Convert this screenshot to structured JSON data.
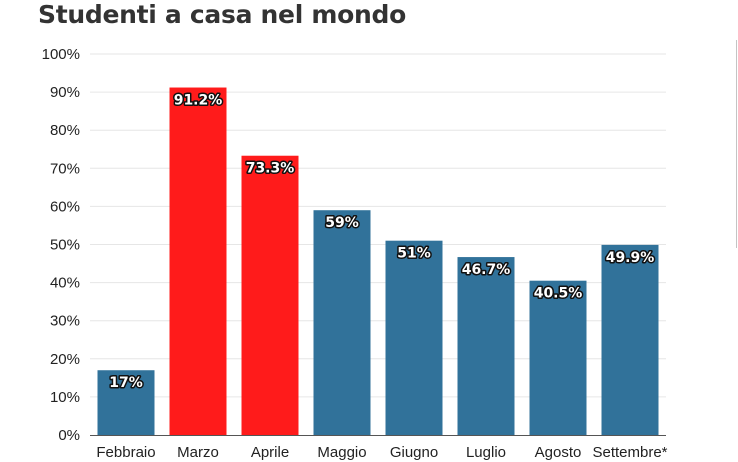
{
  "chart_data": {
    "type": "bar",
    "title": "Studenti a casa nel mondo",
    "xlabel": "",
    "ylabel": "",
    "categories": [
      "Febbraio",
      "Marzo",
      "Aprile",
      "Maggio",
      "Giugno",
      "Luglio",
      "Agosto",
      "Settembre*"
    ],
    "values": [
      17,
      91.2,
      73.3,
      59,
      51,
      46.7,
      40.5,
      49.9
    ],
    "value_labels": [
      "17%",
      "91.2%",
      "73.3%",
      "59%",
      "51%",
      "46.7%",
      "40.5%",
      "49.9%"
    ],
    "colors": [
      "#31729a",
      "#ff1b1b",
      "#ff1b1b",
      "#31729a",
      "#31729a",
      "#31729a",
      "#31729a",
      "#31729a"
    ],
    "ylim": [
      0,
      100
    ],
    "yticks": [
      0,
      10,
      20,
      30,
      40,
      50,
      60,
      70,
      80,
      90,
      100
    ],
    "ytick_labels": [
      "0%",
      "10%",
      "20%",
      "30%",
      "40%",
      "50%",
      "60%",
      "70%",
      "80%",
      "90%",
      "100%"
    ],
    "grid": true,
    "legend": "none"
  }
}
